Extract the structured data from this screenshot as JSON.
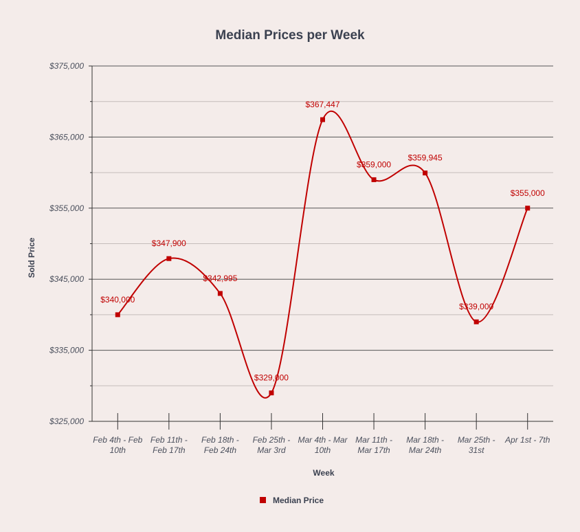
{
  "chart_data": {
    "type": "line",
    "title": "Median Prices per Week",
    "xlabel": "Week",
    "ylabel": "Sold Price",
    "categories": [
      [
        "Feb 4th - Feb",
        "10th"
      ],
      [
        "Feb 11th -",
        "Feb 17th"
      ],
      [
        "Feb 18th -",
        "Feb 24th"
      ],
      [
        "Feb 25th -",
        "Mar 3rd"
      ],
      [
        "Mar 4th - Mar",
        "10th"
      ],
      [
        "Mar 11th -",
        "Mar 17th"
      ],
      [
        "Mar 18th -",
        "Mar 24th"
      ],
      [
        "Mar 25th -",
        "31st"
      ],
      [
        "Apr 1st - 7th"
      ]
    ],
    "series": [
      {
        "name": "Median Price",
        "values": [
          340000,
          347900,
          342995,
          329000,
          367447,
          359000,
          359945,
          339000,
          355000
        ],
        "labels": [
          "$340,000",
          "$347,900",
          "$342,995",
          "$329,000",
          "$367,447",
          "$359,000",
          "$359,945",
          "$339,000",
          "$355,000"
        ],
        "color": "#c00000"
      }
    ],
    "ylim": [
      325000,
      375000
    ],
    "yticks": [
      325000,
      335000,
      345000,
      355000,
      365000,
      375000
    ],
    "ytick_labels": [
      "$325,000",
      "$335,000",
      "$345,000",
      "$355,000",
      "$365,000",
      "$375,000"
    ],
    "minor_gridlines": true,
    "grid": true,
    "legend": "bottom-center",
    "smooth": true
  },
  "colors": {
    "background": "#f4ecea",
    "series": "#c00000",
    "major_grid": "#555555",
    "minor_grid": "#c4bcba",
    "text": "#3b4150"
  }
}
